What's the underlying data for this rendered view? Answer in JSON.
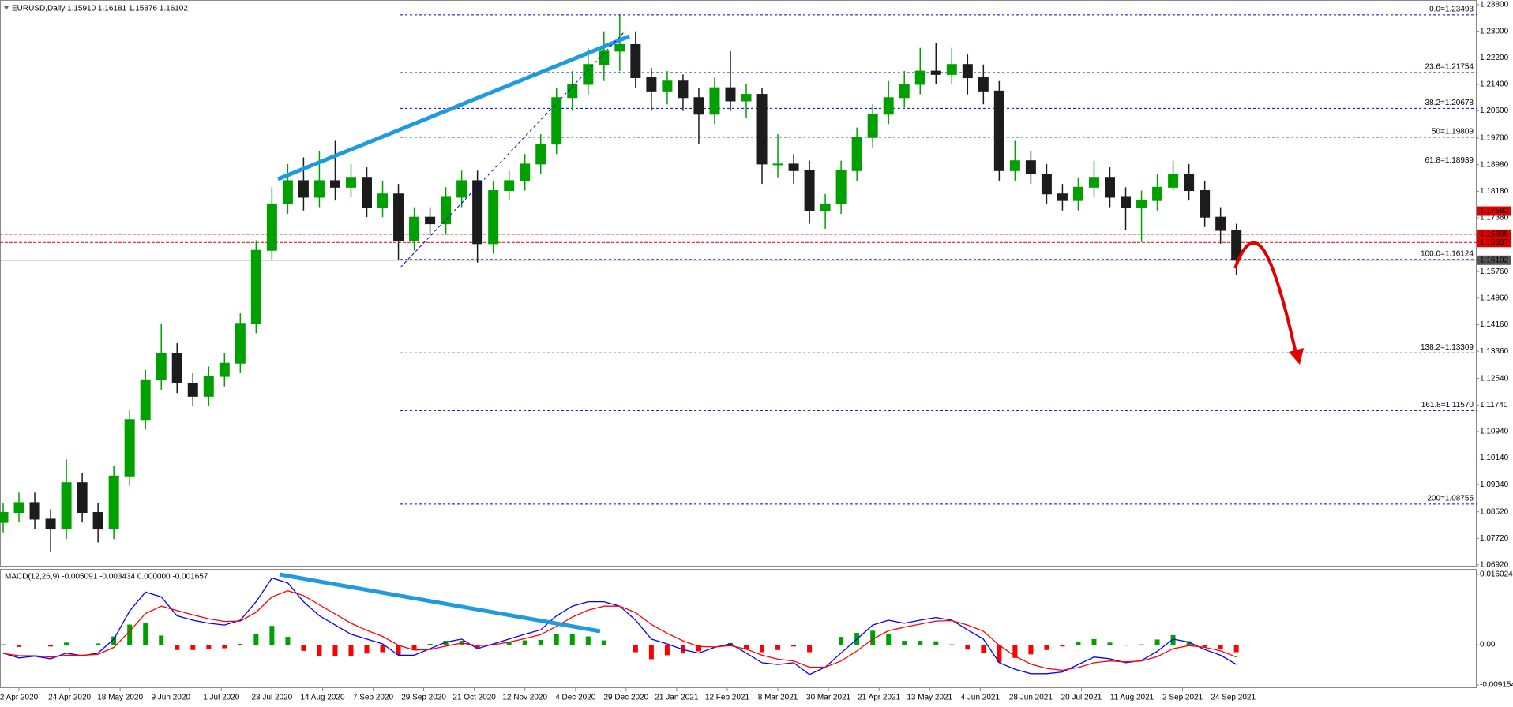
{
  "chart_data": [
    {
      "type": "candlestick",
      "title": "EURUSD,Daily  1.15910 1.16181 1.15876 1.16102",
      "x": [
        -5,
        0,
        5,
        10,
        15,
        20,
        25,
        30,
        35,
        40,
        45,
        50,
        55,
        60,
        65,
        70,
        75,
        80,
        85,
        90,
        95,
        100,
        105,
        110,
        115,
        120,
        125,
        130,
        135,
        140,
        145,
        150,
        155,
        160,
        165,
        170,
        175,
        180,
        185,
        190,
        195,
        200,
        205,
        210,
        215,
        220,
        225,
        230,
        235,
        240,
        245,
        250,
        255,
        260,
        265,
        270,
        275,
        280,
        285,
        290,
        295,
        300,
        305,
        310,
        315,
        320,
        325,
        330,
        335,
        340,
        345,
        350,
        355,
        360,
        365,
        370,
        375,
        380,
        385
      ],
      "open": [
        1.082,
        1.085,
        1.088,
        1.083,
        1.08,
        1.094,
        1.085,
        1.08,
        1.096,
        1.113,
        1.125,
        1.133,
        1.124,
        1.12,
        1.126,
        1.13,
        1.142,
        1.164,
        1.178,
        1.185,
        1.18,
        1.185,
        1.183,
        1.186,
        1.177,
        1.181,
        1.167,
        1.174,
        1.172,
        1.18,
        1.185,
        1.166,
        1.182,
        1.185,
        1.19,
        1.196,
        1.21,
        1.214,
        1.22,
        1.224,
        1.226,
        1.216,
        1.212,
        1.215,
        1.21,
        1.205,
        1.213,
        1.209,
        1.211,
        1.19,
        1.19,
        1.188,
        1.176,
        1.178,
        1.188,
        1.198,
        1.205,
        1.21,
        1.214,
        1.218,
        1.217,
        1.22,
        1.216,
        1.212,
        1.188,
        1.191,
        1.187,
        1.181,
        1.179,
        1.183,
        1.186,
        1.18,
        1.177,
        1.179,
        1.183,
        1.187,
        1.182,
        1.174,
        1.17
      ],
      "high": [
        1.088,
        1.091,
        1.091,
        1.086,
        1.101,
        1.097,
        1.088,
        1.099,
        1.116,
        1.128,
        1.142,
        1.136,
        1.127,
        1.129,
        1.133,
        1.145,
        1.167,
        1.183,
        1.19,
        1.192,
        1.194,
        1.197,
        1.19,
        1.189,
        1.185,
        1.184,
        1.177,
        1.177,
        1.183,
        1.188,
        1.188,
        1.185,
        1.188,
        1.193,
        1.199,
        1.213,
        1.218,
        1.225,
        1.23,
        1.2349,
        1.23,
        1.219,
        1.218,
        1.217,
        1.213,
        1.216,
        1.224,
        1.214,
        1.213,
        1.199,
        1.193,
        1.191,
        1.181,
        1.191,
        1.201,
        1.208,
        1.215,
        1.218,
        1.225,
        1.2266,
        1.225,
        1.223,
        1.22,
        1.215,
        1.197,
        1.194,
        1.19,
        1.184,
        1.186,
        1.191,
        1.189,
        1.183,
        1.182,
        1.187,
        1.191,
        1.19,
        1.185,
        1.177,
        1.172
      ],
      "low": [
        1.079,
        1.082,
        1.08,
        1.073,
        1.077,
        1.082,
        1.076,
        1.077,
        1.093,
        1.11,
        1.122,
        1.121,
        1.117,
        1.117,
        1.123,
        1.127,
        1.139,
        1.161,
        1.175,
        1.176,
        1.177,
        1.179,
        1.18,
        1.174,
        1.174,
        1.1612,
        1.164,
        1.169,
        1.169,
        1.177,
        1.1603,
        1.163,
        1.179,
        1.182,
        1.187,
        1.193,
        1.206,
        1.211,
        1.215,
        1.218,
        1.213,
        1.206,
        1.208,
        1.206,
        1.196,
        1.202,
        1.206,
        1.204,
        1.184,
        1.186,
        1.184,
        1.172,
        1.1705,
        1.175,
        1.185,
        1.195,
        1.202,
        1.207,
        1.211,
        1.214,
        1.214,
        1.211,
        1.208,
        1.185,
        1.185,
        1.184,
        1.178,
        1.176,
        1.176,
        1.18,
        1.177,
        1.17,
        1.1665,
        1.176,
        1.182,
        1.179,
        1.171,
        1.166,
        1.1565
      ],
      "close": [
        1.085,
        1.088,
        1.083,
        1.08,
        1.094,
        1.085,
        1.08,
        1.096,
        1.113,
        1.125,
        1.133,
        1.124,
        1.12,
        1.126,
        1.13,
        1.142,
        1.164,
        1.178,
        1.185,
        1.18,
        1.185,
        1.183,
        1.186,
        1.177,
        1.181,
        1.167,
        1.174,
        1.172,
        1.18,
        1.185,
        1.166,
        1.182,
        1.185,
        1.19,
        1.196,
        1.21,
        1.214,
        1.22,
        1.224,
        1.226,
        1.216,
        1.212,
        1.215,
        1.21,
        1.205,
        1.213,
        1.209,
        1.211,
        1.19,
        1.19,
        1.188,
        1.176,
        1.178,
        1.188,
        1.198,
        1.205,
        1.21,
        1.214,
        1.218,
        1.217,
        1.22,
        1.216,
        1.212,
        1.188,
        1.191,
        1.187,
        1.181,
        1.179,
        1.183,
        1.186,
        1.18,
        1.177,
        1.179,
        1.183,
        1.187,
        1.182,
        1.174,
        1.17,
        1.16102
      ],
      "up_color": "#00a000",
      "down_color": "#1c1c1c",
      "xlim": [
        -6,
        461
      ],
      "ylim": [
        1.0692,
        1.238
      ],
      "yticks": [
        {
          "value": 1.238,
          "label": "1.23800"
        },
        {
          "value": 1.23,
          "label": "1.23000"
        },
        {
          "value": 1.222,
          "label": "1.22200"
        },
        {
          "value": 1.214,
          "label": "1.21400"
        },
        {
          "value": 1.206,
          "label": "1.20600"
        },
        {
          "value": 1.1978,
          "label": "1.19780"
        },
        {
          "value": 1.1898,
          "label": "1.18980"
        },
        {
          "value": 1.1818,
          "label": "1.18180"
        },
        {
          "value": 1.1738,
          "label": "1.17380"
        },
        {
          "value": 1.1576,
          "label": "1.15760"
        },
        {
          "value": 1.1496,
          "label": "1.14960"
        },
        {
          "value": 1.1416,
          "label": "1.14160"
        },
        {
          "value": 1.1336,
          "label": "1.13360"
        },
        {
          "value": 1.1254,
          "label": "1.12540"
        },
        {
          "value": 1.1174,
          "label": "1.11740"
        },
        {
          "value": 1.1094,
          "label": "1.10940"
        },
        {
          "value": 1.1014,
          "label": "1.10140"
        },
        {
          "value": 1.0934,
          "label": "1.09340"
        },
        {
          "value": 1.0852,
          "label": "1.08520"
        },
        {
          "value": 1.0772,
          "label": "1.07720"
        },
        {
          "value": 1.0692,
          "label": "1.06920"
        }
      ],
      "fib_color": "#0000cc",
      "fib_levels": [
        {
          "value": 1.23493,
          "label": "0.0=1.23493"
        },
        {
          "value": 1.21754,
          "label": "23.6=1.21754"
        },
        {
          "value": 1.20678,
          "label": "38.2=1.20678"
        },
        {
          "value": 1.19809,
          "label": "50=1.19809"
        },
        {
          "value": 1.18939,
          "label": "61.8=1.18939"
        },
        {
          "value": 1.16124,
          "label": "100.0=1.16124"
        },
        {
          "value": 1.13309,
          "label": "138.2=1.13309"
        },
        {
          "value": 1.1157,
          "label": "161.8=1.11570"
        },
        {
          "value": 1.08755,
          "label": "200=1.08755"
        }
      ],
      "levels_color": "#e00000",
      "levels": [
        1.17582,
        1.16885,
        1.16637
      ]
    },
    {
      "type": "macd",
      "title": "MACD(12,26,9) -0.005091 -0.003434 0.000000 -0.001657",
      "x": [
        -5,
        0,
        5,
        10,
        15,
        20,
        25,
        30,
        35,
        40,
        45,
        50,
        55,
        60,
        65,
        70,
        75,
        80,
        85,
        90,
        95,
        100,
        105,
        110,
        115,
        120,
        125,
        130,
        135,
        140,
        145,
        150,
        155,
        160,
        165,
        170,
        175,
        180,
        185,
        190,
        195,
        200,
        205,
        210,
        215,
        220,
        225,
        230,
        235,
        240,
        245,
        250,
        255,
        260,
        265,
        270,
        275,
        280,
        285,
        290,
        295,
        300,
        305,
        310,
        315,
        320,
        325,
        330,
        335,
        340,
        345,
        350,
        355,
        360,
        365,
        370,
        375,
        380,
        385
      ],
      "series": [
        {
          "color": "#0000ff",
          "values": [
            -0.0019,
            -0.003,
            -0.0026,
            -0.0032,
            -0.0019,
            -0.0025,
            -0.0019,
            0.0013,
            0.0077,
            0.012,
            0.0109,
            0.0066,
            0.0056,
            0.0049,
            0.0045,
            0.0056,
            0.0098,
            0.0152,
            0.0141,
            0.0098,
            0.0066,
            0.0045,
            0.0024,
            0.0013,
            0.0002,
            -0.0024,
            -0.0024,
            -0.0009,
            0.0006,
            0.0013,
            -0.0009,
            0.0002,
            0.0013,
            0.0024,
            0.0034,
            0.0066,
            0.0088,
            0.0098,
            0.0098,
            0.0088,
            0.0056,
            0.0013,
            0.0002,
            -0.0011,
            -0.0019,
            -0.0006,
            0.0002,
            -0.0019,
            -0.0041,
            -0.0045,
            -0.0041,
            -0.0068,
            -0.0051,
            -0.0019,
            0.0013,
            0.0045,
            0.0056,
            0.0049,
            0.0056,
            0.0062,
            0.0056,
            0.0034,
            0.0013,
            -0.0041,
            -0.0056,
            -0.0066,
            -0.0066,
            -0.0062,
            -0.0045,
            -0.0028,
            -0.0032,
            -0.0041,
            -0.0036,
            -0.0015,
            0.0013,
            0.0006,
            -0.0011,
            -0.0024,
            -0.0045
          ]
        },
        {
          "color": "#ff0000",
          "values": [
            -0.002,
            -0.0025,
            -0.0025,
            -0.0028,
            -0.0024,
            -0.0024,
            -0.0022,
            -0.0006,
            0.0031,
            0.0071,
            0.0088,
            0.0078,
            0.0068,
            0.0059,
            0.0053,
            0.0054,
            0.0074,
            0.0109,
            0.0123,
            0.0112,
            0.0091,
            0.007,
            0.0049,
            0.0033,
            0.0019,
            -0.0001,
            -0.0012,
            -0.0011,
            -0.0003,
            0.0004,
            -0.0002,
            0,
            0.0006,
            0.0014,
            0.0023,
            0.0042,
            0.0063,
            0.0079,
            0.0088,
            0.0088,
            0.0073,
            0.0046,
            0.0026,
            0.0009,
            -0.0004,
            -0.0005,
            -0.0002,
            -0.001,
            -0.0024,
            -0.0033,
            -0.0037,
            -0.0051,
            -0.0051,
            -0.0037,
            -0.0014,
            0.0013,
            0.0032,
            0.004,
            0.0047,
            0.0054,
            0.0055,
            0.0045,
            0.0031,
            -0.0001,
            -0.0026,
            -0.0044,
            -0.0054,
            -0.0058,
            -0.0052,
            -0.0041,
            -0.0037,
            -0.0039,
            -0.0037,
            -0.0027,
            -0.0009,
            -0.0002,
            -0.0006,
            -0.0014,
            -0.0028
          ]
        }
      ],
      "histogram": {
        "up_color": "#00a000",
        "down_color": "#ff0000",
        "values": [
          0.0001,
          -0.0005,
          -0.0001,
          -0.0004,
          0.0005,
          -0.0001,
          0.0003,
          0.0019,
          0.0046,
          0.0049,
          0.0021,
          -0.0012,
          -0.0012,
          -0.001,
          -0.0008,
          0.0002,
          0.0024,
          0.0043,
          0.0018,
          -0.0014,
          -0.0025,
          -0.0025,
          -0.0025,
          -0.002,
          -0.0017,
          -0.0023,
          -0.0012,
          0.0002,
          0.0009,
          0.0009,
          -0.0007,
          0.0002,
          0.0007,
          0.001,
          0.0011,
          0.0024,
          0.0025,
          0.0019,
          0.001,
          0,
          -0.0017,
          -0.0033,
          -0.0024,
          -0.002,
          -0.0015,
          -0.0001,
          0.0004,
          -0.0009,
          -0.0017,
          -0.0012,
          -0.0004,
          -0.0017,
          0,
          0.0018,
          0.0027,
          0.0032,
          0.0024,
          0.0009,
          0.0009,
          0.0008,
          0.0001,
          -0.0011,
          -0.0018,
          -0.004,
          -0.003,
          -0.0022,
          -0.0012,
          -0.0004,
          0.0007,
          0.0013,
          0.0005,
          -0.0002,
          0.0001,
          0.0012,
          0.0022,
          0.0008,
          -0.0005,
          -0.001,
          -0.0017
        ]
      },
      "xlim": [
        -6,
        461
      ],
      "ylim": [
        -0.009154,
        0.016024
      ],
      "yticks": [
        0.016024,
        {
          "value": 0,
          "label": "0.00"
        },
        -0.009154
      ],
      "xticks": [
        {
          "value": 0,
          "label": "2 Apr 2020"
        },
        {
          "value": 16,
          "label": "24 Apr 2020"
        },
        {
          "value": 32,
          "label": "18 May 2020"
        },
        {
          "value": 48,
          "label": "9 Jun 2020"
        },
        {
          "value": 64,
          "label": "1 Jul 2020"
        },
        {
          "value": 80,
          "label": "23 Jul 2020"
        },
        {
          "value": 96,
          "label": "14 Aug 2020"
        },
        {
          "value": 112,
          "label": "7 Sep 2020"
        },
        {
          "value": 128,
          "label": "29 Sep 2020"
        },
        {
          "value": 144,
          "label": "21 Oct 2020"
        },
        {
          "value": 160,
          "label": "12 Nov 2020"
        },
        {
          "value": 176,
          "label": "4 Dec 2020"
        },
        {
          "value": 192,
          "label": "29 Dec 2020"
        },
        {
          "value": 208,
          "label": "21 Jan 2021"
        },
        {
          "value": 224,
          "label": "12 Feb 2021"
        },
        {
          "value": 240,
          "label": "8 Mar 2021"
        },
        {
          "value": 256,
          "label": "30 Mar 2021"
        },
        {
          "value": 272,
          "label": "21 Apr 2021"
        },
        {
          "value": 288,
          "label": "13 May 2021"
        },
        {
          "value": 304,
          "label": "4 Jun 2021"
        },
        {
          "value": 320,
          "label": "28 Jun 2021"
        },
        {
          "value": 336,
          "label": "20 Jul 2021"
        },
        {
          "value": 352,
          "label": "11 Aug 2021"
        },
        {
          "value": 368,
          "label": "2 Sep 2021"
        },
        {
          "value": 384,
          "label": "24 Sep 2021"
        }
      ]
    }
  ]
}
